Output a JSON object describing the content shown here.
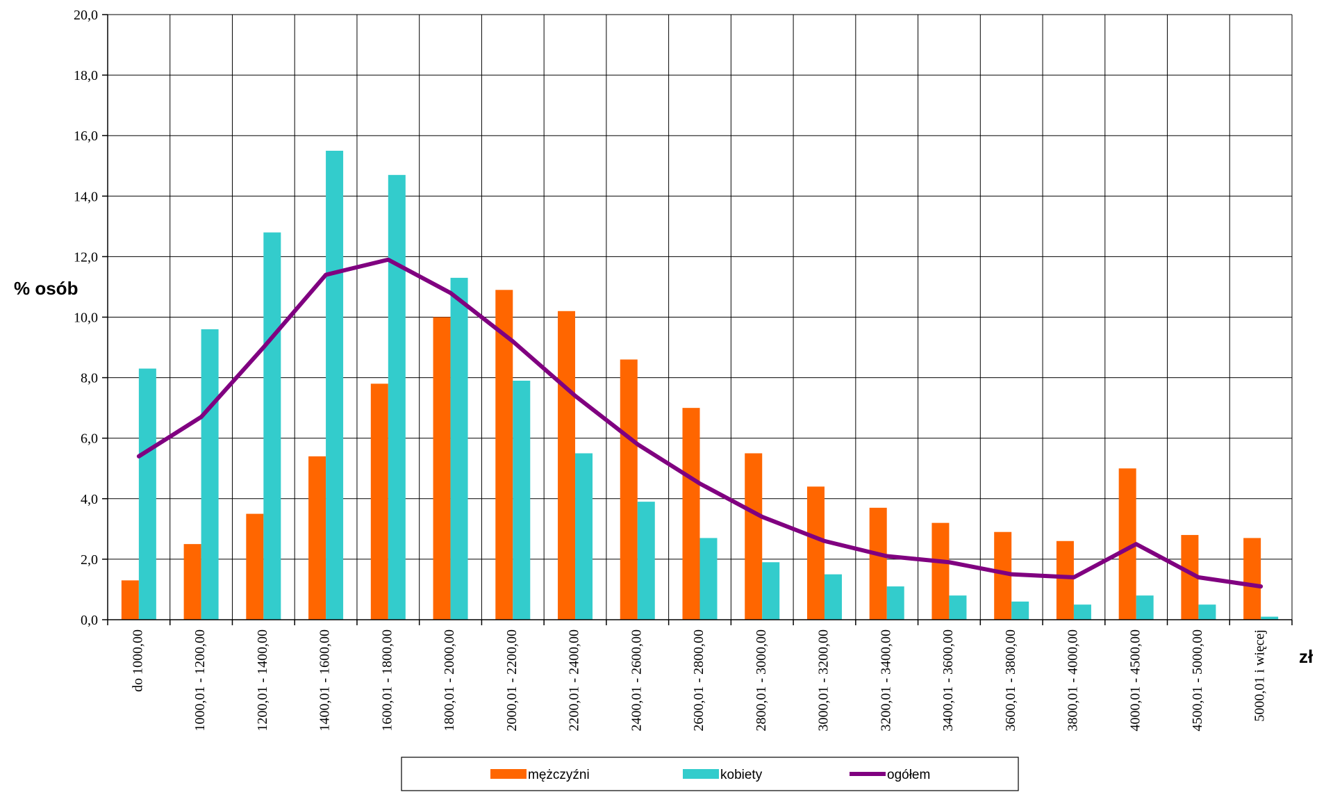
{
  "chart_data": {
    "type": "bar",
    "title": "",
    "ylabel": "% osób",
    "xlabel": "zł",
    "ylim": [
      0,
      20
    ],
    "y_ticks": [
      "0,0",
      "2,0",
      "4,0",
      "6,0",
      "8,0",
      "10,0",
      "12,0",
      "14,0",
      "16,0",
      "18,0",
      "20,0"
    ],
    "grid": true,
    "legend_position": "bottom",
    "categories": [
      "do 1000,00",
      "1000,01 - 1200,00",
      "1200,01 - 1400,00",
      "1400,01 - 1600,00",
      "1600,01 - 1800,00",
      "1800,01 - 2000,00",
      "2000,01 - 2200,00",
      "2200,01 - 2400,00",
      "2400,01 - 2600,00",
      "2600,01 - 2800,00",
      "2800,01 - 3000,00",
      "3000,01 - 3200,00",
      "3200,01 - 3400,00",
      "3400,01 - 3600,00",
      "3600,01 - 3800,00",
      "3800,01 - 4000,00",
      "4000,01 - 4500,00",
      "4500,01 - 5000,00",
      "5000,01 i więcej"
    ],
    "series": [
      {
        "name": "mężczyźni",
        "type": "bar",
        "color": "#ff6600",
        "values": [
          1.3,
          2.5,
          3.5,
          5.4,
          7.8,
          10.0,
          10.9,
          10.2,
          8.6,
          7.0,
          5.5,
          4.4,
          3.7,
          3.2,
          2.9,
          2.6,
          5.0,
          2.8,
          2.7
        ]
      },
      {
        "name": "kobiety",
        "type": "bar",
        "color": "#33cccc",
        "values": [
          8.3,
          9.6,
          12.8,
          15.5,
          14.7,
          11.3,
          7.9,
          5.5,
          3.9,
          2.7,
          1.9,
          1.5,
          1.1,
          0.8,
          0.6,
          0.5,
          0.8,
          0.5,
          0.1
        ]
      },
      {
        "name": "ogółem",
        "type": "line",
        "color": "#800080",
        "values": [
          5.4,
          6.7,
          9.0,
          11.4,
          11.9,
          10.8,
          9.2,
          7.4,
          5.8,
          4.5,
          3.4,
          2.6,
          2.1,
          1.9,
          1.5,
          1.4,
          2.5,
          1.4,
          1.1
        ]
      }
    ]
  }
}
